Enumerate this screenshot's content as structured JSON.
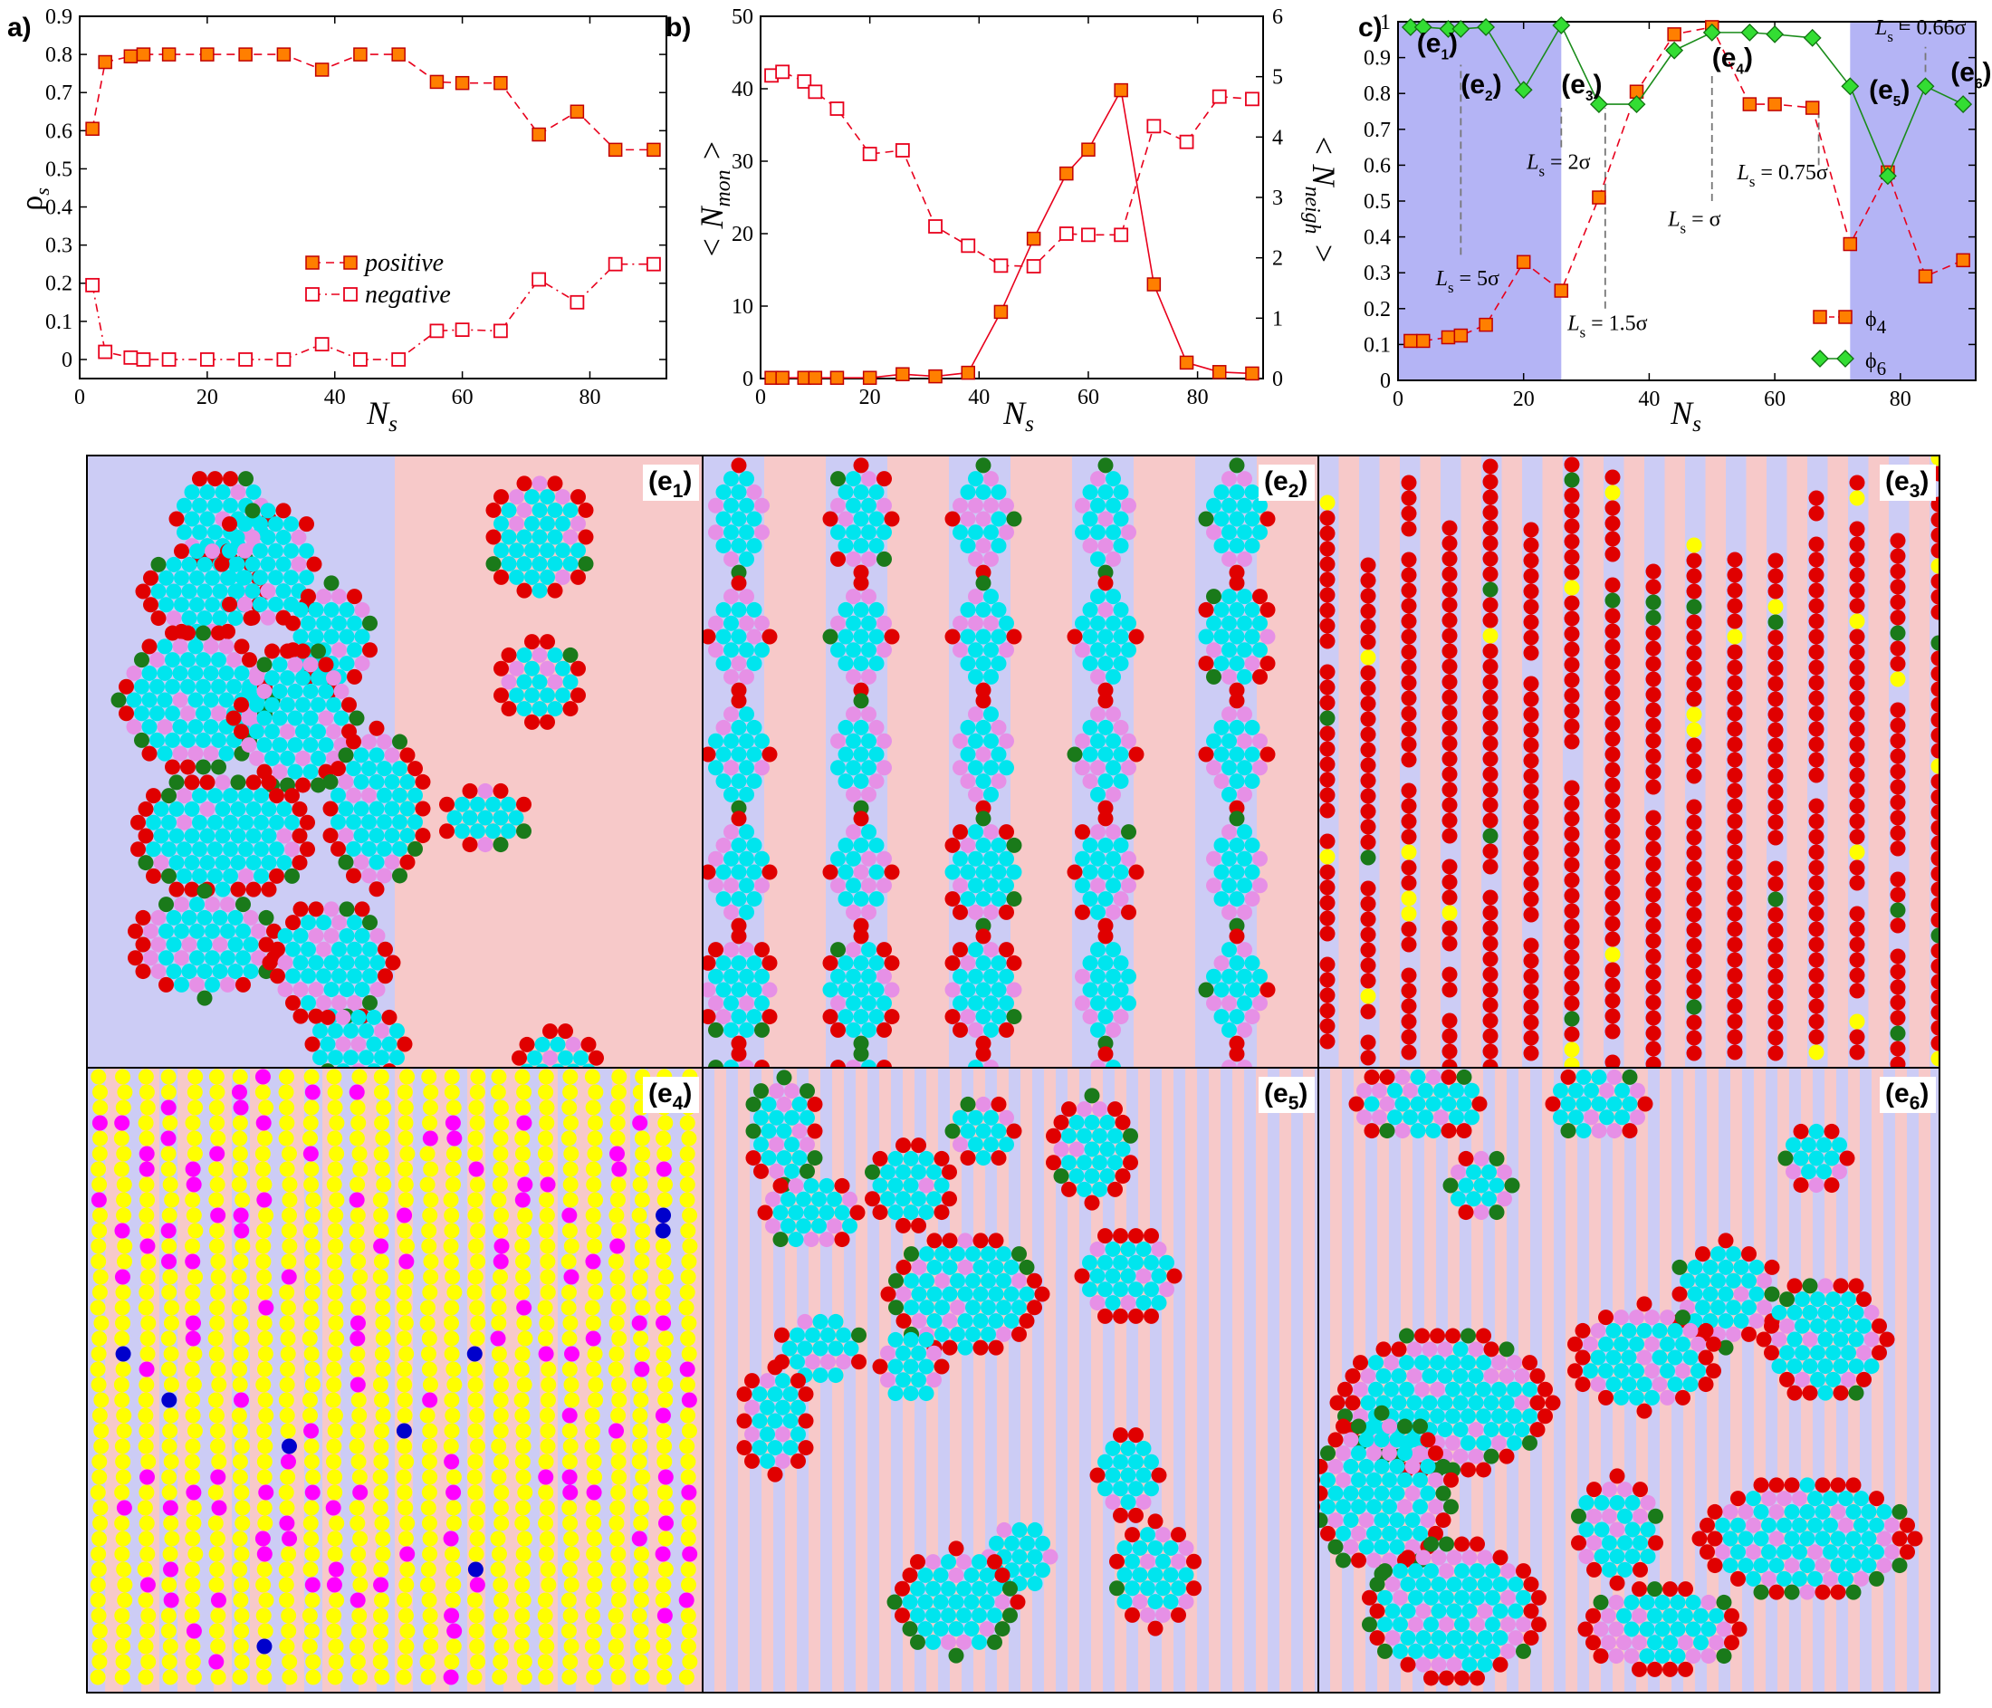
{
  "panel_letters": {
    "a": "a)",
    "b": "b)",
    "c": "c)"
  },
  "chart_data": [
    {
      "type": "line",
      "panel": "a)",
      "xlabel": "N",
      "xlabel_sub": "s",
      "ylabel": "ρ",
      "ylabel_sub": "s",
      "xlim": [
        0,
        92
      ],
      "ylim": [
        -0.05,
        0.9
      ],
      "xticks": [
        0,
        20,
        40,
        60,
        80
      ],
      "yticks": [
        0,
        0.1,
        0.2,
        0.3,
        0.4,
        0.5,
        0.6,
        0.7,
        0.8,
        0.9
      ],
      "ytick_labels": [
        "0",
        "0.1",
        "0.2",
        "0.3",
        "0.4",
        "0.5",
        "0.6",
        "0.7",
        "0.8",
        "0.9"
      ],
      "legend_position": "bottom-center",
      "series": [
        {
          "name": "positive",
          "style": "dashed",
          "marker": "filled-square",
          "x": [
            2,
            4,
            8,
            10,
            14,
            20,
            26,
            32,
            38,
            44,
            50,
            56,
            60,
            66,
            72,
            78,
            84,
            90
          ],
          "y": [
            0.605,
            0.78,
            0.795,
            0.8,
            0.8,
            0.8,
            0.8,
            0.8,
            0.76,
            0.8,
            0.8,
            0.728,
            0.725,
            0.725,
            0.59,
            0.65,
            0.55,
            0.55
          ]
        },
        {
          "name": "negative",
          "style": "dash-dot",
          "marker": "open-square",
          "x": [
            2,
            4,
            8,
            10,
            14,
            20,
            26,
            32,
            38,
            44,
            50,
            56,
            60,
            66,
            72,
            78,
            84,
            90
          ],
          "y": [
            0.195,
            0.02,
            0.005,
            0.0,
            0.0,
            0.0,
            0.0,
            0.0,
            0.04,
            0.0,
            0.0,
            0.075,
            0.078,
            0.075,
            0.21,
            0.15,
            0.25,
            0.25
          ]
        }
      ]
    },
    {
      "type": "line",
      "panel": "b)",
      "xlabel": "N",
      "xlabel_sub": "s",
      "ylabel": "< N",
      "ylabel_sub": "mon",
      "ylabel_end": " >",
      "y2label": "< N",
      "y2label_sub": "neigh",
      "y2label_end": " >",
      "xlim": [
        0,
        92
      ],
      "ylim": [
        0,
        50
      ],
      "y2lim": [
        0,
        6
      ],
      "xticks": [
        0,
        20,
        40,
        60,
        80
      ],
      "yticks": [
        0,
        10,
        20,
        30,
        40,
        50
      ],
      "y2ticks": [
        0,
        1,
        2,
        3,
        4,
        5,
        6
      ],
      "series": [
        {
          "name": "",
          "axis": "left",
          "style": "solid",
          "marker": "filled-square",
          "x": [
            2,
            4,
            8,
            10,
            14,
            20,
            26,
            32,
            38,
            44,
            50,
            56,
            60,
            66,
            72,
            78,
            84,
            90
          ],
          "y": [
            0.1,
            0.1,
            0.1,
            0.1,
            0.1,
            0.1,
            0.6,
            0.3,
            0.8,
            9.2,
            19.3,
            28.3,
            31.6,
            39.8,
            13.0,
            2.2,
            0.9,
            0.7
          ]
        },
        {
          "name": "",
          "axis": "right",
          "style": "dashed",
          "marker": "open-square",
          "x": [
            2,
            4,
            8,
            10,
            14,
            20,
            26,
            32,
            38,
            44,
            50,
            56,
            60,
            66,
            72,
            78,
            84,
            90
          ],
          "y": [
            5.02,
            5.08,
            4.92,
            4.75,
            4.47,
            3.72,
            3.78,
            2.52,
            2.2,
            1.87,
            1.86,
            2.4,
            2.38,
            2.38,
            4.18,
            3.92,
            4.67,
            4.63
          ]
        }
      ]
    },
    {
      "type": "line",
      "panel": "c)",
      "xlabel": "N",
      "xlabel_sub": "s",
      "xlim": [
        0,
        92
      ],
      "ylim": [
        0,
        1
      ],
      "xticks": [
        0,
        20,
        40,
        60,
        80
      ],
      "yticks": [
        0,
        0.1,
        0.2,
        0.3,
        0.4,
        0.5,
        0.6,
        0.7,
        0.8,
        0.9,
        1
      ],
      "ytick_labels": [
        "0",
        "0.1",
        "0.2",
        "0.3",
        "0.4",
        "0.5",
        "0.6",
        "0.7",
        "0.8",
        "0.9",
        "1"
      ],
      "shaded_x_ranges": [
        [
          0,
          26
        ],
        [
          72,
          92
        ]
      ],
      "legend_position": "bottom-right",
      "series": [
        {
          "name": "ϕ",
          "name_sub": "4",
          "color": "#ff7f00",
          "style": "dashed",
          "marker": "filled-square",
          "x": [
            2,
            4,
            8,
            10,
            14,
            20,
            26,
            32,
            38,
            44,
            50,
            56,
            60,
            66,
            72,
            78,
            84,
            90
          ],
          "y": [
            0.11,
            0.11,
            0.12,
            0.125,
            0.155,
            0.33,
            0.25,
            0.51,
            0.805,
            0.965,
            0.985,
            0.77,
            0.77,
            0.76,
            0.38,
            0.58,
            0.29,
            0.335
          ]
        },
        {
          "name": "ϕ",
          "name_sub": "6",
          "color": "#22cc22",
          "style": "solid",
          "marker": "diamond",
          "x": [
            2,
            4,
            8,
            10,
            14,
            20,
            26,
            32,
            38,
            44,
            50,
            56,
            60,
            66,
            72,
            78,
            84,
            90
          ],
          "y": [
            0.985,
            0.985,
            0.98,
            0.98,
            0.985,
            0.81,
            0.99,
            0.77,
            0.77,
            0.92,
            0.97,
            0.97,
            0.965,
            0.955,
            0.82,
            0.57,
            0.82,
            0.77
          ]
        }
      ],
      "point_labels": [
        {
          "main": "(e",
          "sub": "1",
          "end": ")",
          "x": 3,
          "y": 0.915
        },
        {
          "main": "(e",
          "sub": "2",
          "end": ")",
          "x": 10,
          "y": 0.8
        },
        {
          "main": "(e",
          "sub": "3",
          "end": ")",
          "x": 26,
          "y": 0.8
        },
        {
          "main": "(e",
          "sub": "4",
          "end": ")",
          "x": 50,
          "y": 0.875
        },
        {
          "main": "(e",
          "sub": "5",
          "end": ")",
          "x": 75,
          "y": 0.785
        },
        {
          "main": "(e",
          "sub": "6",
          "end": ")",
          "x": 88,
          "y": 0.835
        }
      ],
      "spacing_labels": [
        {
          "main": "L",
          "sub": "s",
          "value": " = 5σ",
          "x": 6,
          "y": 0.265,
          "line_x": 10,
          "line_y": [
            0.35,
            0.88
          ]
        },
        {
          "main": "L",
          "sub": "s",
          "value": " = 2σ",
          "x": 20.5,
          "y": 0.59,
          "line_x": 26,
          "line_y": [
            0.65,
            0.76
          ]
        },
        {
          "main": "L",
          "sub": "s",
          "value": " = 1.5σ",
          "x": 27,
          "y": 0.14,
          "line_x": 33,
          "line_y": [
            0.2,
            0.76
          ]
        },
        {
          "main": "L",
          "sub": "s",
          "value": " = σ",
          "x": 43,
          "y": 0.43,
          "line_x": 50,
          "line_y": [
            0.5,
            0.86
          ]
        },
        {
          "main": "L",
          "sub": "s",
          "value": " = 0.75σ",
          "x": 54,
          "y": 0.56,
          "line_x": 67,
          "line_y": [
            0.6,
            0.76
          ]
        },
        {
          "main": "L",
          "sub": "s",
          "value": " = 0.66σ",
          "x": 76,
          "y": 0.965,
          "line_x": 84,
          "line_y": [
            0.86,
            0.93
          ]
        }
      ]
    }
  ],
  "snapshots": [
    {
      "label": "(e",
      "sub": "1",
      "end": ")"
    },
    {
      "label": "(e",
      "sub": "2",
      "end": ")"
    },
    {
      "label": "(e",
      "sub": "3",
      "end": ")"
    },
    {
      "label": "(e",
      "sub": "4",
      "end": ")"
    },
    {
      "label": "(e",
      "sub": "5",
      "end": ")"
    },
    {
      "label": "(e",
      "sub": "6",
      "end": ")"
    }
  ],
  "colors": {
    "orange_marker": "#ff7f00",
    "red_line": "#e8001c",
    "green_marker": "#33dd33",
    "green_line": "#1a8c1a",
    "shade_blue": "#b4b4f5",
    "stripe_blue": "#ccccf5",
    "stripe_pink": "#f7c9c9",
    "cyan": "#00e5ee",
    "red_bead": "#e00000",
    "darkgreen_bead": "#1a7a1a",
    "violet_bead": "#e690e6",
    "yellow_bead": "#ffff00",
    "magenta_bead": "#ff00ff",
    "blue_bead": "#0000cc"
  }
}
